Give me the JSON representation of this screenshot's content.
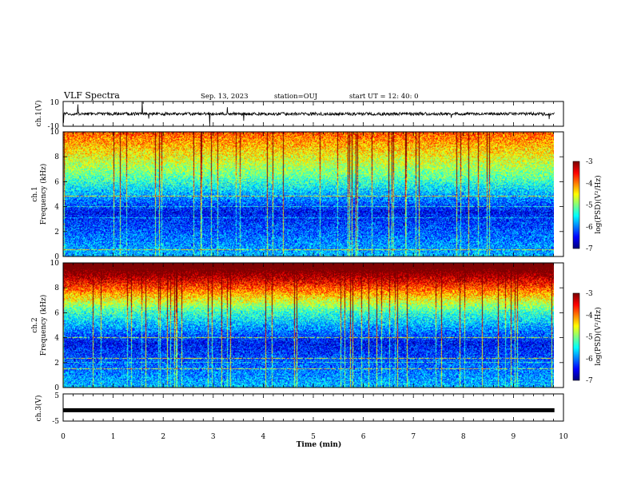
{
  "header": {
    "title": "VLF Spectra",
    "date": "Sep. 13, 2023",
    "station": "station=OUJ",
    "start": "start UT =  12: 40: 0"
  },
  "chart_data": [
    {
      "type": "line",
      "panel": "ch1-waveform",
      "ylabel": "ch.1(V)",
      "yticks": [
        "10",
        "-10"
      ],
      "ylim": [
        -10,
        10
      ],
      "xlim": [
        0,
        10
      ],
      "baseline": 0,
      "noise_amplitude": 1.2,
      "x_end": 9.82
    },
    {
      "type": "heatmap",
      "panel": "ch1-spectrogram",
      "ylabel": "ch.1",
      "ylabel2": "Frequency (kHz)",
      "yticks": [
        "0",
        "2",
        "4",
        "6",
        "8",
        "10"
      ],
      "ylim": [
        0,
        10
      ],
      "xlim": [
        0,
        10
      ],
      "x_end": 9.82,
      "colorbar": {
        "label": "log(PSD)(V²/Hz)",
        "ticks": [
          "-3",
          "-4",
          "-5",
          "-6",
          "-7"
        ],
        "range": [
          -7,
          -3
        ]
      }
    },
    {
      "type": "heatmap",
      "panel": "ch2-spectrogram",
      "ylabel": "ch.2",
      "ylabel2": "Frequency (kHz)",
      "yticks": [
        "0",
        "2",
        "4",
        "6",
        "8",
        "10"
      ],
      "ylim": [
        0,
        10
      ],
      "xlim": [
        0,
        10
      ],
      "x_end": 9.82,
      "colorbar": {
        "label": "log(PSD)(V²/Hz)",
        "ticks": [
          "-3",
          "-4",
          "-5",
          "-6",
          "-7"
        ],
        "range": [
          -7,
          -3
        ]
      }
    },
    {
      "type": "line",
      "panel": "ch3-waveform",
      "ylabel": "ch.3(V)",
      "yticks": [
        "5",
        "0",
        "-5"
      ],
      "ylim": [
        -5,
        5
      ],
      "xlim": [
        0,
        10
      ],
      "baseline": -1.0,
      "x_end": 9.82
    }
  ],
  "xaxis": {
    "label": "Time (min)",
    "ticks": [
      "0",
      "1",
      "2",
      "3",
      "4",
      "5",
      "6",
      "7",
      "8",
      "9",
      "10"
    ]
  }
}
